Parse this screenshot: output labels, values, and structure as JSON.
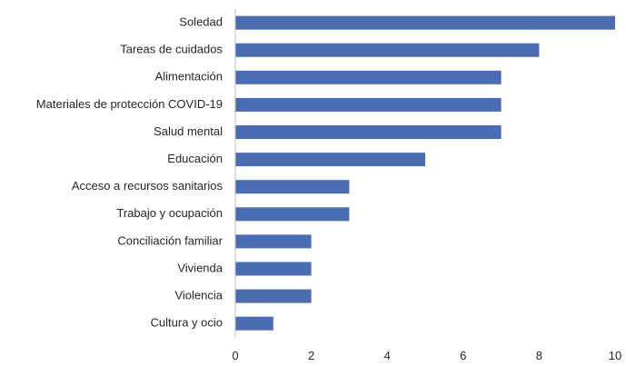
{
  "chart_data": {
    "type": "bar",
    "orientation": "horizontal",
    "title": "",
    "xlabel": "",
    "ylabel": "",
    "categories": [
      "Soledad",
      "Tareas de cuidados",
      "Alimentación",
      "Materiales de protección COVID-19",
      "Salud mental",
      "Educación",
      "Acceso a recursos sanitarios",
      "Trabajo y ocupación",
      "Conciliación familiar",
      "Vivienda",
      "Violencia",
      "Cultura y ocio"
    ],
    "values": [
      10,
      8,
      7,
      7,
      7,
      5,
      3,
      3,
      2,
      2,
      2,
      1
    ],
    "xlim": [
      0,
      10
    ],
    "x_ticks": [
      "0",
      "2",
      "4",
      "6",
      "8",
      "10"
    ],
    "bar_color": "#4a6cb0",
    "axis_color": "#bfbfbf",
    "grid": false,
    "legend": "none"
  }
}
